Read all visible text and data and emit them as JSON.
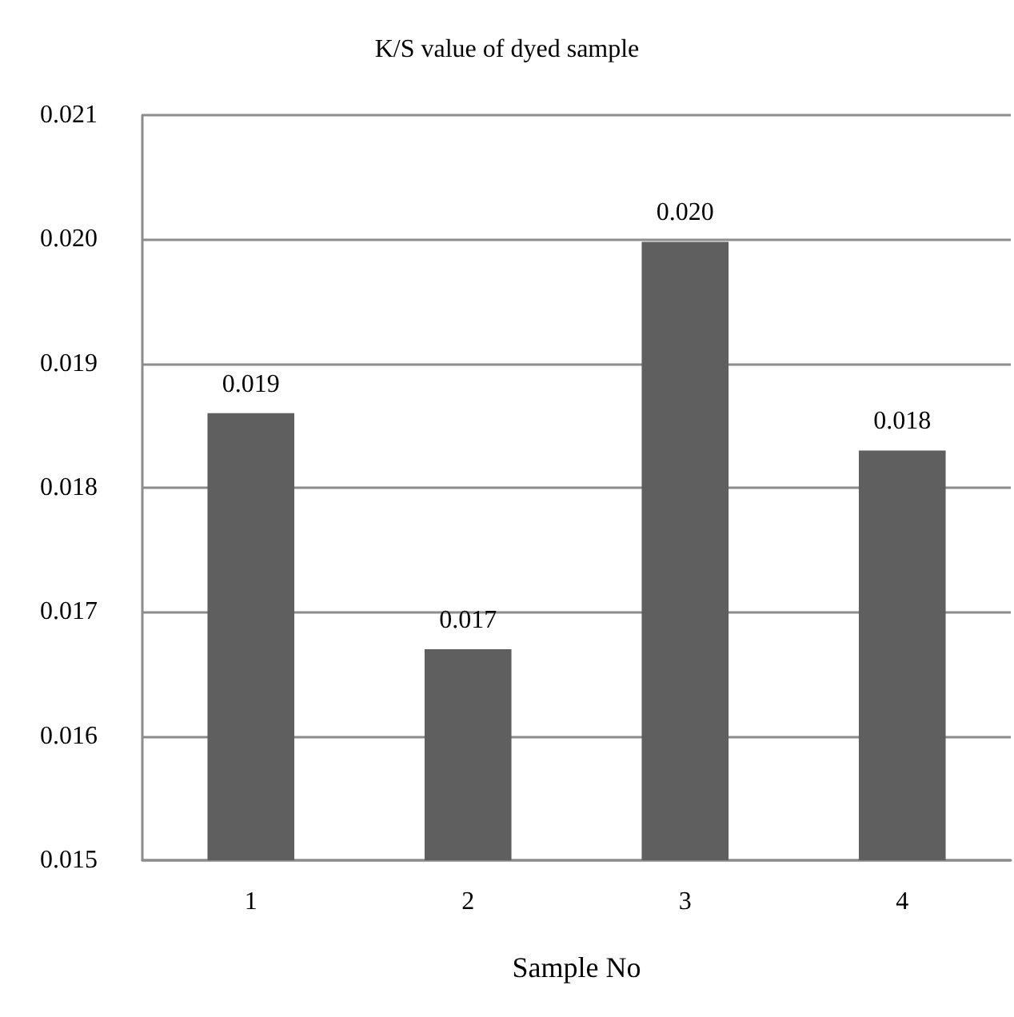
{
  "chart_data": {
    "type": "bar",
    "title": "K/S value of dyed sample",
    "xlabel": "Sample No",
    "categories": [
      "1",
      "2",
      "3",
      "4"
    ],
    "values": [
      0.0186,
      0.0167,
      0.01998,
      0.0183
    ],
    "value_labels": [
      "0.019",
      "0.017",
      "0.020",
      "0.018"
    ],
    "color": "#5f5f5f",
    "ylim": [
      0.015,
      0.021
    ],
    "yticks": [
      "0.015",
      "0.016",
      "0.017",
      "0.018",
      "0.019",
      "0.020",
      "0.021"
    ],
    "grid": "y"
  }
}
